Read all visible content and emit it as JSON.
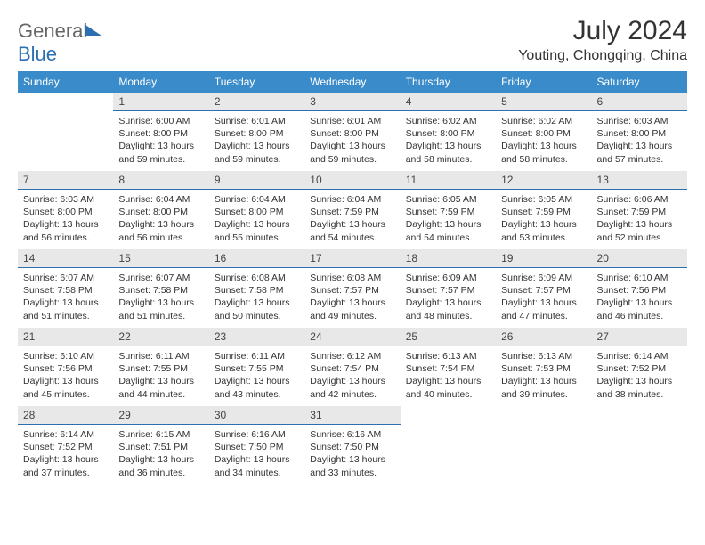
{
  "header": {
    "logo_general": "General",
    "logo_blue": "Blue",
    "month_title": "July 2024",
    "location": "Youting, Chongqing, China"
  },
  "calendar": {
    "day_names": [
      "Sunday",
      "Monday",
      "Tuesday",
      "Wednesday",
      "Thursday",
      "Friday",
      "Saturday"
    ],
    "colors": {
      "header_bg": "#3a8bc9",
      "header_fg": "#ffffff",
      "daynum_bg": "#e8e8e8",
      "daynum_border": "#2b6fb0"
    },
    "weeks": [
      [
        null,
        {
          "n": "1",
          "sr": "Sunrise: 6:00 AM",
          "ss": "Sunset: 8:00 PM",
          "dl": "Daylight: 13 hours and 59 minutes."
        },
        {
          "n": "2",
          "sr": "Sunrise: 6:01 AM",
          "ss": "Sunset: 8:00 PM",
          "dl": "Daylight: 13 hours and 59 minutes."
        },
        {
          "n": "3",
          "sr": "Sunrise: 6:01 AM",
          "ss": "Sunset: 8:00 PM",
          "dl": "Daylight: 13 hours and 59 minutes."
        },
        {
          "n": "4",
          "sr": "Sunrise: 6:02 AM",
          "ss": "Sunset: 8:00 PM",
          "dl": "Daylight: 13 hours and 58 minutes."
        },
        {
          "n": "5",
          "sr": "Sunrise: 6:02 AM",
          "ss": "Sunset: 8:00 PM",
          "dl": "Daylight: 13 hours and 58 minutes."
        },
        {
          "n": "6",
          "sr": "Sunrise: 6:03 AM",
          "ss": "Sunset: 8:00 PM",
          "dl": "Daylight: 13 hours and 57 minutes."
        }
      ],
      [
        {
          "n": "7",
          "sr": "Sunrise: 6:03 AM",
          "ss": "Sunset: 8:00 PM",
          "dl": "Daylight: 13 hours and 56 minutes."
        },
        {
          "n": "8",
          "sr": "Sunrise: 6:04 AM",
          "ss": "Sunset: 8:00 PM",
          "dl": "Daylight: 13 hours and 56 minutes."
        },
        {
          "n": "9",
          "sr": "Sunrise: 6:04 AM",
          "ss": "Sunset: 8:00 PM",
          "dl": "Daylight: 13 hours and 55 minutes."
        },
        {
          "n": "10",
          "sr": "Sunrise: 6:04 AM",
          "ss": "Sunset: 7:59 PM",
          "dl": "Daylight: 13 hours and 54 minutes."
        },
        {
          "n": "11",
          "sr": "Sunrise: 6:05 AM",
          "ss": "Sunset: 7:59 PM",
          "dl": "Daylight: 13 hours and 54 minutes."
        },
        {
          "n": "12",
          "sr": "Sunrise: 6:05 AM",
          "ss": "Sunset: 7:59 PM",
          "dl": "Daylight: 13 hours and 53 minutes."
        },
        {
          "n": "13",
          "sr": "Sunrise: 6:06 AM",
          "ss": "Sunset: 7:59 PM",
          "dl": "Daylight: 13 hours and 52 minutes."
        }
      ],
      [
        {
          "n": "14",
          "sr": "Sunrise: 6:07 AM",
          "ss": "Sunset: 7:58 PM",
          "dl": "Daylight: 13 hours and 51 minutes."
        },
        {
          "n": "15",
          "sr": "Sunrise: 6:07 AM",
          "ss": "Sunset: 7:58 PM",
          "dl": "Daylight: 13 hours and 51 minutes."
        },
        {
          "n": "16",
          "sr": "Sunrise: 6:08 AM",
          "ss": "Sunset: 7:58 PM",
          "dl": "Daylight: 13 hours and 50 minutes."
        },
        {
          "n": "17",
          "sr": "Sunrise: 6:08 AM",
          "ss": "Sunset: 7:57 PM",
          "dl": "Daylight: 13 hours and 49 minutes."
        },
        {
          "n": "18",
          "sr": "Sunrise: 6:09 AM",
          "ss": "Sunset: 7:57 PM",
          "dl": "Daylight: 13 hours and 48 minutes."
        },
        {
          "n": "19",
          "sr": "Sunrise: 6:09 AM",
          "ss": "Sunset: 7:57 PM",
          "dl": "Daylight: 13 hours and 47 minutes."
        },
        {
          "n": "20",
          "sr": "Sunrise: 6:10 AM",
          "ss": "Sunset: 7:56 PM",
          "dl": "Daylight: 13 hours and 46 minutes."
        }
      ],
      [
        {
          "n": "21",
          "sr": "Sunrise: 6:10 AM",
          "ss": "Sunset: 7:56 PM",
          "dl": "Daylight: 13 hours and 45 minutes."
        },
        {
          "n": "22",
          "sr": "Sunrise: 6:11 AM",
          "ss": "Sunset: 7:55 PM",
          "dl": "Daylight: 13 hours and 44 minutes."
        },
        {
          "n": "23",
          "sr": "Sunrise: 6:11 AM",
          "ss": "Sunset: 7:55 PM",
          "dl": "Daylight: 13 hours and 43 minutes."
        },
        {
          "n": "24",
          "sr": "Sunrise: 6:12 AM",
          "ss": "Sunset: 7:54 PM",
          "dl": "Daylight: 13 hours and 42 minutes."
        },
        {
          "n": "25",
          "sr": "Sunrise: 6:13 AM",
          "ss": "Sunset: 7:54 PM",
          "dl": "Daylight: 13 hours and 40 minutes."
        },
        {
          "n": "26",
          "sr": "Sunrise: 6:13 AM",
          "ss": "Sunset: 7:53 PM",
          "dl": "Daylight: 13 hours and 39 minutes."
        },
        {
          "n": "27",
          "sr": "Sunrise: 6:14 AM",
          "ss": "Sunset: 7:52 PM",
          "dl": "Daylight: 13 hours and 38 minutes."
        }
      ],
      [
        {
          "n": "28",
          "sr": "Sunrise: 6:14 AM",
          "ss": "Sunset: 7:52 PM",
          "dl": "Daylight: 13 hours and 37 minutes."
        },
        {
          "n": "29",
          "sr": "Sunrise: 6:15 AM",
          "ss": "Sunset: 7:51 PM",
          "dl": "Daylight: 13 hours and 36 minutes."
        },
        {
          "n": "30",
          "sr": "Sunrise: 6:16 AM",
          "ss": "Sunset: 7:50 PM",
          "dl": "Daylight: 13 hours and 34 minutes."
        },
        {
          "n": "31",
          "sr": "Sunrise: 6:16 AM",
          "ss": "Sunset: 7:50 PM",
          "dl": "Daylight: 13 hours and 33 minutes."
        },
        null,
        null,
        null
      ]
    ]
  }
}
